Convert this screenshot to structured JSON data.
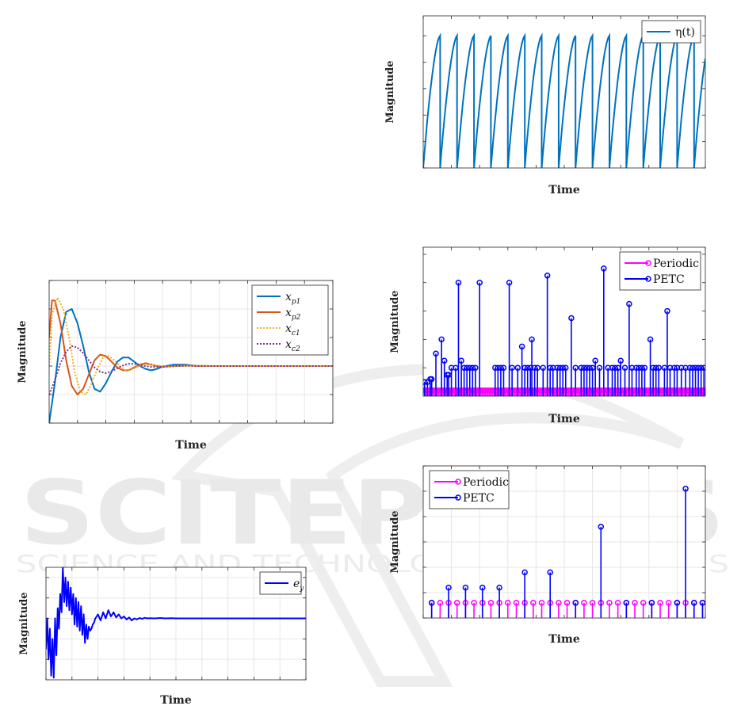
{
  "watermark": {
    "title": "SCITEPRESS",
    "subtitle": "SCIENCE AND TECHNOLOGY PUBLICATIONS",
    "colors": {
      "text": "#e9e9e9"
    }
  },
  "chart_data": [
    {
      "id": "states",
      "type": "line",
      "xlabel": "Time",
      "ylabel": "Magnitude",
      "grid": true,
      "legend": "top-right",
      "xlim": [
        0,
        10
      ],
      "ylim": [
        -2,
        3
      ],
      "x_ticks": [
        0,
        1,
        2,
        3,
        4,
        5,
        6,
        7,
        8,
        9,
        10
      ],
      "y_ticks": [
        -2,
        -1,
        0,
        1,
        2,
        3
      ],
      "series": [
        {
          "name": "x",
          "sub": "p1",
          "color": "#0072BD",
          "style": "solid",
          "x": [
            0,
            0.2,
            0.4,
            0.6,
            0.8,
            1.0,
            1.2,
            1.4,
            1.6,
            1.8,
            2.0,
            2.2,
            2.4,
            2.6,
            2.8,
            3.0,
            3.2,
            3.4,
            3.6,
            3.8,
            4.0,
            4.4,
            4.8,
            5.2,
            5.6,
            6.0,
            7.0,
            8.0,
            9.0,
            10.0
          ],
          "y": [
            -2.0,
            -0.6,
            1.0,
            1.9,
            2.0,
            1.5,
            0.7,
            -0.2,
            -0.8,
            -0.9,
            -0.6,
            -0.2,
            0.15,
            0.3,
            0.3,
            0.15,
            0.0,
            -0.1,
            -0.15,
            -0.1,
            -0.02,
            0.05,
            0.05,
            0.0,
            0.0,
            0.0,
            0.0,
            0.0,
            0.0,
            0.0
          ]
        },
        {
          "name": "x",
          "sub": "p2",
          "color": "#D95319",
          "style": "solid",
          "x": [
            0,
            0.1,
            0.2,
            0.4,
            0.6,
            0.8,
            1.0,
            1.2,
            1.4,
            1.6,
            1.8,
            2.0,
            2.2,
            2.4,
            2.6,
            2.8,
            3.0,
            3.2,
            3.4,
            3.6,
            3.8,
            4.0,
            4.4,
            4.8,
            5.2,
            6.0,
            7.0,
            8.0,
            9.0,
            10.0
          ],
          "y": [
            1.0,
            2.3,
            2.3,
            1.5,
            0.2,
            -0.7,
            -1.0,
            -0.8,
            -0.3,
            0.2,
            0.4,
            0.35,
            0.15,
            -0.05,
            -0.15,
            -0.15,
            -0.05,
            0.05,
            0.1,
            0.05,
            0.0,
            -0.03,
            0.0,
            0.02,
            0.0,
            0.0,
            0.0,
            0.0,
            0.0,
            0.0
          ]
        },
        {
          "name": "x",
          "sub": "c1",
          "color": "#EDB120",
          "style": "dotted",
          "x": [
            0,
            0.1,
            0.3,
            0.5,
            0.7,
            0.9,
            1.1,
            1.3,
            1.5,
            1.7,
            1.9,
            2.1,
            2.3,
            2.5,
            2.7,
            2.9,
            3.1,
            3.3,
            3.5,
            3.8,
            4.2,
            4.6,
            5.0,
            6.0,
            7.0,
            8.0,
            9.0,
            10.0
          ],
          "y": [
            0.0,
            1.8,
            2.4,
            2.0,
            1.0,
            -0.2,
            -0.9,
            -1.0,
            -0.6,
            -0.1,
            0.3,
            0.35,
            0.2,
            0.0,
            -0.15,
            -0.12,
            -0.03,
            0.05,
            0.06,
            0.02,
            -0.02,
            0.0,
            0.01,
            0.0,
            0.0,
            0.0,
            0.0,
            0.0
          ]
        },
        {
          "name": "x",
          "sub": "c2",
          "color": "#7E2F8E",
          "style": "dotted",
          "x": [
            0,
            0.2,
            0.4,
            0.6,
            0.8,
            1.0,
            1.2,
            1.4,
            1.6,
            1.8,
            2.0,
            2.2,
            2.4,
            2.6,
            2.8,
            3.0,
            3.2,
            3.4,
            3.6,
            4.0,
            4.5,
            5.0,
            6.0,
            7.0,
            8.0,
            9.0,
            10.0
          ],
          "y": [
            -1.0,
            -0.5,
            0.1,
            0.5,
            0.7,
            0.65,
            0.45,
            0.2,
            -0.05,
            -0.2,
            -0.25,
            -0.18,
            -0.08,
            0.02,
            0.08,
            0.08,
            0.04,
            0.0,
            -0.03,
            -0.02,
            0.0,
            0.01,
            0.0,
            0.0,
            0.0,
            0.0,
            0.0
          ]
        }
      ]
    },
    {
      "id": "error",
      "type": "line",
      "xlabel": "Time",
      "ylabel": "Magnitude",
      "grid": true,
      "legend": "top-right",
      "xlim": [
        0,
        10
      ],
      "ylim": [
        -3,
        2.5
      ],
      "x_ticks": [
        0,
        1,
        2,
        3,
        4,
        5,
        6,
        7,
        8,
        9,
        10
      ],
      "y_ticks": [
        -3,
        -2,
        -1,
        0,
        1,
        2
      ],
      "series": [
        {
          "name": "e",
          "sub": "y",
          "color": "#0000FF",
          "style": "solid",
          "x": [
            0,
            0.05,
            0.1,
            0.15,
            0.2,
            0.25,
            0.3,
            0.35,
            0.4,
            0.45,
            0.5,
            0.55,
            0.6,
            0.65,
            0.7,
            0.75,
            0.8,
            0.85,
            0.9,
            0.95,
            1.0,
            1.05,
            1.1,
            1.15,
            1.2,
            1.25,
            1.3,
            1.35,
            1.4,
            1.45,
            1.5,
            1.55,
            1.6,
            1.65,
            1.7,
            1.75,
            1.8,
            1.85,
            1.9,
            1.95,
            2.0,
            2.1,
            2.2,
            2.3,
            2.4,
            2.5,
            2.6,
            2.7,
            2.8,
            2.9,
            3.0,
            3.1,
            3.2,
            3.3,
            3.4,
            3.5,
            3.6,
            3.7,
            3.8,
            3.9,
            4.0,
            4.2,
            4.4,
            4.6,
            4.8,
            5.0,
            5.5,
            6.0,
            7.0,
            8.0,
            9.0,
            10.0
          ],
          "y": [
            -1.5,
            0.0,
            -2.0,
            -0.5,
            -2.8,
            -1.0,
            -2.9,
            0.0,
            -1.8,
            0.5,
            -0.5,
            1.2,
            0.3,
            2.5,
            0.8,
            2.0,
            0.6,
            1.8,
            0.4,
            1.5,
            0.2,
            1.2,
            -0.3,
            1.0,
            -0.4,
            0.8,
            -0.6,
            0.6,
            -0.8,
            0.2,
            -1.2,
            -0.3,
            -1.0,
            -0.4,
            -0.6,
            -0.5,
            -0.3,
            -0.2,
            0.0,
            0.1,
            0.2,
            -0.1,
            0.3,
            0.0,
            0.4,
            0.1,
            0.3,
            0.05,
            0.2,
            0.0,
            0.1,
            -0.05,
            0.05,
            -0.1,
            0.0,
            -0.05,
            0.02,
            -0.02,
            0.03,
            0.0,
            0.01,
            0.0,
            0.02,
            0.0,
            0.01,
            0.0,
            0.0,
            0.0,
            0.0,
            0.0,
            0.0,
            0.0
          ]
        }
      ]
    },
    {
      "id": "eta",
      "type": "line",
      "xlabel": "Time",
      "ylabel": "Magnitude",
      "grid": false,
      "legend": "top-right",
      "xlim": [
        0,
        10
      ],
      "ylim": [
        0,
        1.15
      ],
      "x_ticks": [
        0,
        1,
        2,
        3,
        4,
        5,
        6,
        7,
        8,
        9,
        10
      ],
      "y_ticks": [
        0,
        0.2,
        0.4,
        0.6,
        0.8,
        1.0
      ],
      "series": [
        {
          "name": "η(t)",
          "color": "#0072BD",
          "style": "solid",
          "period": 0.6,
          "peak": 1.0
        }
      ]
    },
    {
      "id": "intervals_top",
      "type": "scatter",
      "xlabel": "Time",
      "ylabel": "Magnitude",
      "grid": false,
      "legend": "top-right",
      "xlim": [
        0,
        10
      ],
      "ylim": [
        0,
        1.05
      ],
      "x_ticks": [
        0,
        1,
        2,
        3,
        4,
        5,
        6,
        7,
        8,
        9,
        10
      ],
      "y_ticks": [
        0.2,
        0.4,
        0.6,
        0.8,
        1.0
      ],
      "series": [
        {
          "name": "Periodic",
          "color": "#FF00FF",
          "style": "stem",
          "spacing": 0.05,
          "value": 0.04
        },
        {
          "name": "PETC",
          "color": "#0000FF",
          "style": "stem",
          "x": [
            0.05,
            0.15,
            0.25,
            0.3,
            0.45,
            0.65,
            0.75,
            0.85,
            0.9,
            1.0,
            1.15,
            1.25,
            1.35,
            1.45,
            1.55,
            1.65,
            1.75,
            1.85,
            2.0,
            2.55,
            2.65,
            2.75,
            2.85,
            3.05,
            3.15,
            3.35,
            3.5,
            3.6,
            3.7,
            3.8,
            3.85,
            3.95,
            4.05,
            4.25,
            4.4,
            4.5,
            4.6,
            4.75,
            4.85,
            4.95,
            5.05,
            5.25,
            5.4,
            5.6,
            5.7,
            5.8,
            5.9,
            6.0,
            6.1,
            6.25,
            6.4,
            6.55,
            6.7,
            6.8,
            6.9,
            7.0,
            7.15,
            7.3,
            7.4,
            7.55,
            7.65,
            7.75,
            7.85,
            8.05,
            8.15,
            8.25,
            8.35,
            8.55,
            8.65,
            8.75,
            8.9,
            9.0,
            9.15,
            9.3,
            9.45,
            9.55,
            9.65,
            9.75,
            9.85,
            9.95
          ],
          "y": [
            0.1,
            0.1,
            0.12,
            0.12,
            0.3,
            0.4,
            0.25,
            0.15,
            0.15,
            0.2,
            0.2,
            0.8,
            0.25,
            0.2,
            0.2,
            0.2,
            0.2,
            0.2,
            0.8,
            0.2,
            0.2,
            0.2,
            0.2,
            0.8,
            0.2,
            0.2,
            0.35,
            0.2,
            0.2,
            0.2,
            0.4,
            0.2,
            0.2,
            0.2,
            0.85,
            0.2,
            0.2,
            0.2,
            0.2,
            0.2,
            0.2,
            0.55,
            0.2,
            0.2,
            0.2,
            0.2,
            0.2,
            0.2,
            0.25,
            0.2,
            0.9,
            0.2,
            0.2,
            0.2,
            0.2,
            0.25,
            0.2,
            0.65,
            0.2,
            0.2,
            0.2,
            0.2,
            0.2,
            0.4,
            0.2,
            0.2,
            0.2,
            0.2,
            0.6,
            0.2,
            0.2,
            0.2,
            0.2,
            0.2,
            0.2,
            0.2,
            0.2,
            0.2,
            0.2,
            0.2
          ]
        }
      ]
    },
    {
      "id": "intervals_bottom",
      "type": "scatter",
      "xlabel": "Time",
      "ylabel": "Magnitude",
      "grid": true,
      "legend": "top-left",
      "xlim": [
        0,
        10
      ],
      "ylim": [
        0,
        6
      ],
      "x_ticks": [
        0,
        1,
        2,
        3,
        4,
        5,
        6,
        7,
        8,
        9,
        10
      ],
      "y_ticks": [
        0,
        1,
        2,
        3,
        4,
        5,
        6
      ],
      "series": [
        {
          "name": "Periodic",
          "color": "#FF00FF",
          "style": "stem",
          "spacing": 0.3,
          "value": 0.6
        },
        {
          "name": "PETC",
          "color": "#0000FF",
          "style": "stem",
          "x": [
            0.3,
            0.9,
            1.5,
            2.1,
            2.7,
            3.6,
            4.5,
            5.4,
            6.3,
            7.2,
            8.1,
            9.0,
            9.3,
            9.6,
            9.9
          ],
          "y": [
            0.6,
            1.2,
            1.2,
            1.2,
            1.2,
            1.8,
            1.8,
            0.6,
            3.6,
            0.6,
            0.6,
            0.6,
            5.1,
            0.6,
            0.6
          ]
        }
      ]
    }
  ]
}
